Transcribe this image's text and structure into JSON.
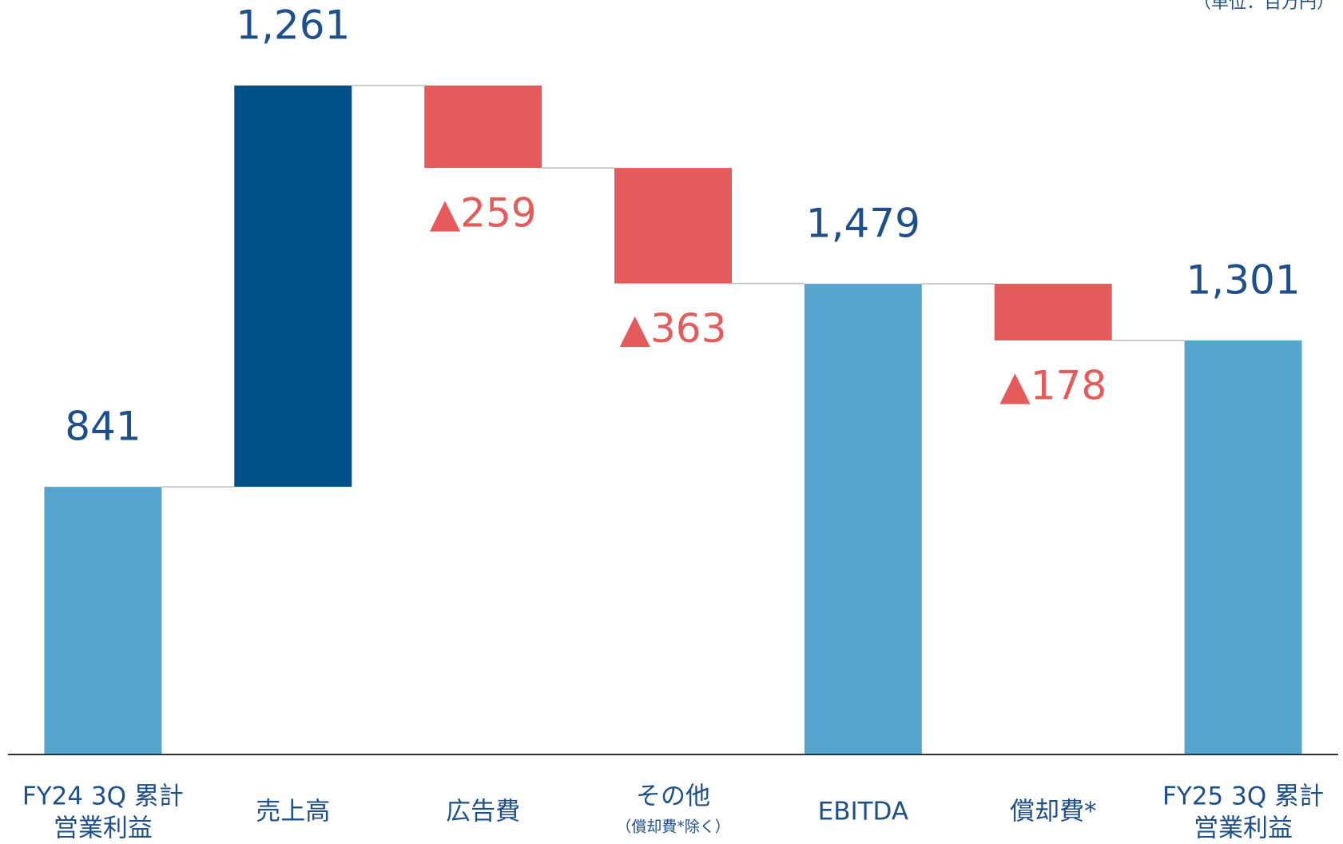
{
  "chart_data": {
    "type": "waterfall",
    "unit_label": "（単位：百万円）",
    "categories": [
      [
        "FY24 3Q 累計",
        "営業利益"
      ],
      [
        "売上高"
      ],
      [
        "広告費"
      ],
      [
        "その他"
      ],
      [
        "EBITDA"
      ],
      [
        "償却費*"
      ],
      [
        "FY25 3Q 累計",
        "営業利益"
      ]
    ],
    "category_notes": [
      null,
      null,
      null,
      "（償却費*除く）",
      null,
      null,
      null
    ],
    "measure": [
      "total",
      "relative",
      "relative",
      "relative",
      "total",
      "relative",
      "total"
    ],
    "values": [
      841,
      1261,
      -259,
      -363,
      1479,
      -178,
      1301
    ],
    "value_labels": [
      "841",
      "1,261",
      "▲259",
      "▲363",
      "1,479",
      "▲178",
      "1,301"
    ],
    "colors": {
      "total": "#56a5cf",
      "increase": "#00508a",
      "decrease": "#e55a5a"
    },
    "label_colors": {
      "positive": "#1d4f8a",
      "negative": "#e55a5a"
    }
  }
}
